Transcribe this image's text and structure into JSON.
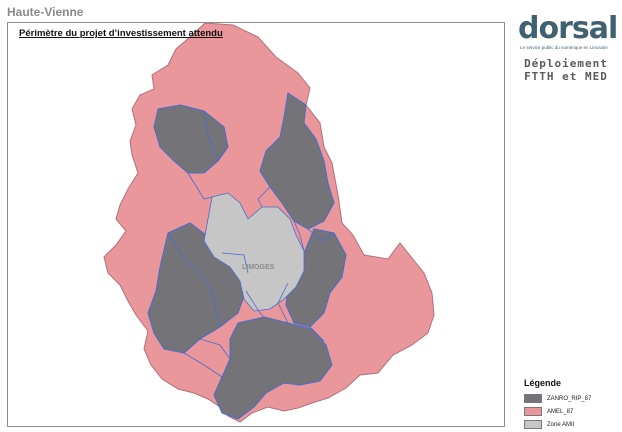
{
  "page": {
    "heading": "Haute-Vienne"
  },
  "map": {
    "title": "Périmètre du projet d’investissement attendu",
    "city_label": "LIMOGES",
    "colors": {
      "zanro": "#747478",
      "amel": "#e9979b",
      "ami": "#c6c6c6",
      "border": "#4a6bd0",
      "outline": "#b0707a"
    }
  },
  "logo": {
    "name": "dorsal",
    "tagline": "Le service public du numérique en Limousin"
  },
  "deployment": {
    "line1": "Déploiement",
    "line2": "FTTH et MED"
  },
  "legend": {
    "title": "Légende",
    "items": [
      {
        "label": "ZANRO_RIP_87",
        "color": "#747478"
      },
      {
        "label": "AMEL_87",
        "color": "#e9979b"
      },
      {
        "label": "Zone AMII",
        "color": "#c6c6c6"
      }
    ]
  }
}
